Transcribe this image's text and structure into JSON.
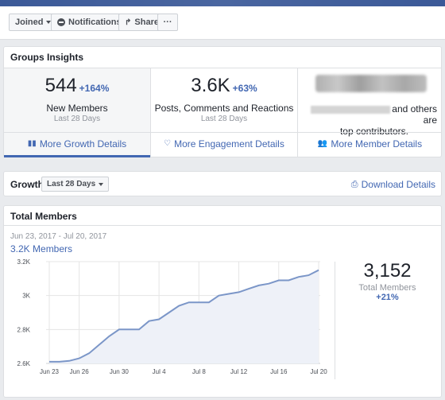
{
  "actionbar": {
    "joined": "Joined",
    "notifications": "Notifications",
    "share": "Share",
    "more": "···"
  },
  "insights": {
    "title": "Groups Insights",
    "growth": {
      "value": "544",
      "pct": "+164%",
      "label": "New Members",
      "period": "Last 28 Days",
      "link": "More Growth Details"
    },
    "engagement": {
      "value": "3.6K",
      "pct": "+63%",
      "label": "Posts, Comments and Reactions",
      "period": "Last 28 Days",
      "link": "More Engagement Details"
    },
    "members": {
      "contrib_text": "and others are",
      "contrib_text2": "top contributors.",
      "link": "More Member Details"
    }
  },
  "growth_bar": {
    "title": "Growth",
    "period_select": "Last 28 Days",
    "download": "Download Details"
  },
  "total_members": {
    "title": "Total Members",
    "date_range": "Jun 23, 2017 - Jul 20, 2017",
    "members_label": "3.2K Members",
    "total": "3,152",
    "total_label": "Total Members",
    "total_pct": "+21%"
  },
  "colors": {
    "accent": "#4267b2",
    "line": "#7b96c8",
    "fill": "#eef1f8"
  },
  "chart_data": {
    "type": "area",
    "x": [
      "Jun 23",
      "Jun 24",
      "Jun 25",
      "Jun 26",
      "Jun 27",
      "Jun 28",
      "Jun 29",
      "Jun 30",
      "Jul 1",
      "Jul 2",
      "Jul 3",
      "Jul 4",
      "Jul 5",
      "Jul 6",
      "Jul 7",
      "Jul 8",
      "Jul 9",
      "Jul 10",
      "Jul 11",
      "Jul 12",
      "Jul 13",
      "Jul 14",
      "Jul 15",
      "Jul 16",
      "Jul 17",
      "Jul 18",
      "Jul 19",
      "Jul 20"
    ],
    "series": [
      {
        "values": [
          2610,
          2610,
          2615,
          2630,
          2660,
          2710,
          2760,
          2800,
          2800,
          2800,
          2850,
          2860,
          2900,
          2940,
          2960,
          2960,
          2960,
          3000,
          3010,
          3020,
          3040,
          3060,
          3070,
          3090,
          3090,
          3110,
          3120,
          3150
        ]
      }
    ],
    "x_ticks": [
      "Jun 23",
      "Jun 26",
      "Jun 30",
      "Jul 4",
      "Jul 8",
      "Jul 12",
      "Jul 16",
      "Jul 20"
    ],
    "y_ticks": [
      2600,
      2800,
      3000,
      3200
    ],
    "y_tick_labels": [
      "2.6K",
      "2.8K",
      "3K",
      "3.2K"
    ],
    "ylim": [
      2600,
      3200
    ],
    "grid": true
  }
}
